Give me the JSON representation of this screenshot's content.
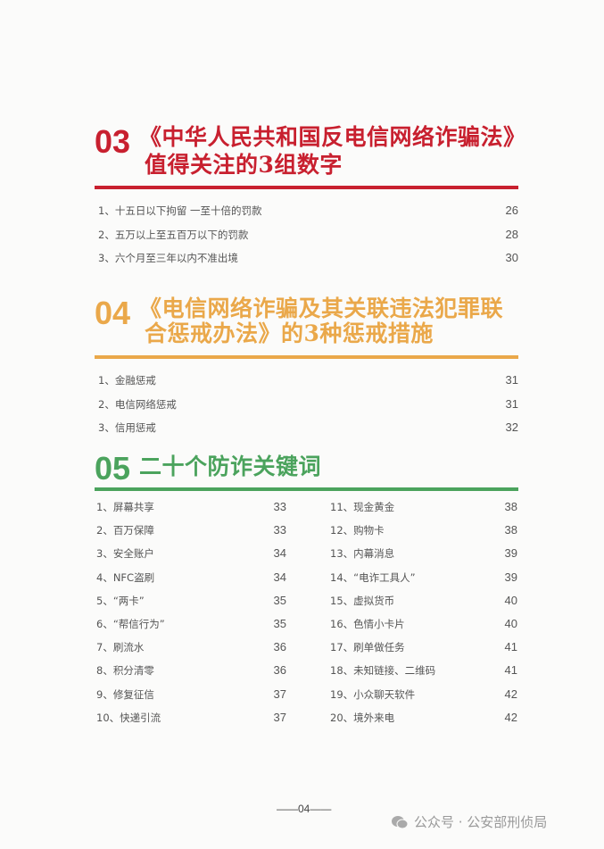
{
  "colors": {
    "sec03": "#c8202f",
    "sec04": "#eaa84a",
    "sec05": "#4ba35d"
  },
  "sections": [
    {
      "number": "03",
      "title_lines": [
        "《中华人民共和国反电信网络诈骗法》",
        "值得关注的3组数字"
      ],
      "items": [
        {
          "label": "1、十五日以下拘留 一至十倍的罚款",
          "page": "26"
        },
        {
          "label": "2、五万以上至五百万以下的罚款",
          "page": "28"
        },
        {
          "label": "3、六个月至三年以内不准出境",
          "page": "30"
        }
      ]
    },
    {
      "number": "04",
      "title_lines": [
        "《电信网络诈骗及其关联违法犯罪联",
        "合惩戒办法》的3种惩戒措施"
      ],
      "items": [
        {
          "label": "1、金融惩戒",
          "page": "31"
        },
        {
          "label": "2、电信网络惩戒",
          "page": "31"
        },
        {
          "label": "3、信用惩戒",
          "page": "32"
        }
      ]
    },
    {
      "number": "05",
      "title_lines": [
        "二十个防诈关键词"
      ],
      "items": [
        {
          "label": "1、屏幕共享",
          "page": "33"
        },
        {
          "label": "2、百万保障",
          "page": "33"
        },
        {
          "label": "3、安全账户",
          "page": "34"
        },
        {
          "label": "4、NFC盗刷",
          "page": "34"
        },
        {
          "label": "5、“两卡”",
          "page": "35"
        },
        {
          "label": "6、“帮信行为”",
          "page": "35"
        },
        {
          "label": "7、刷流水",
          "page": "36"
        },
        {
          "label": "8、积分清零",
          "page": "36"
        },
        {
          "label": "9、修复征信",
          "page": "37"
        },
        {
          "label": "10、快递引流",
          "page": "37"
        },
        {
          "label": "11、现金黄金",
          "page": "38"
        },
        {
          "label": "12、购物卡",
          "page": "38"
        },
        {
          "label": "13、内幕消息",
          "page": "39"
        },
        {
          "label": "14、“电诈工具人”",
          "page": "39"
        },
        {
          "label": "15、虚拟货币",
          "page": "40"
        },
        {
          "label": "16、色情小卡片",
          "page": "40"
        },
        {
          "label": "17、刷单做任务",
          "page": "41"
        },
        {
          "label": "18、未知链接、二维码",
          "page": "41"
        },
        {
          "label": "19、小众聊天软件",
          "page": "42"
        },
        {
          "label": "20、境外来电",
          "page": "42"
        }
      ]
    }
  ],
  "footer": {
    "page_number": "——04——",
    "watermark": "公众号 · 公安部刑侦局",
    "watermark_icon": "wechat-icon"
  }
}
